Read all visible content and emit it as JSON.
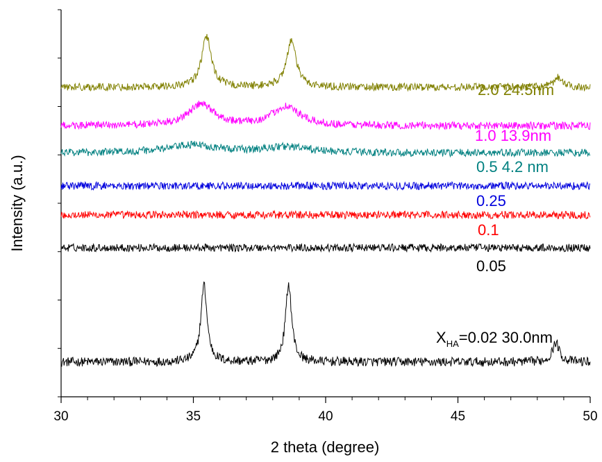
{
  "chart_data": {
    "type": "line",
    "xlabel": "2 theta (degree)",
    "ylabel": "Intensity (a.u.)",
    "xlim": [
      30,
      50
    ],
    "xticks": [
      "30",
      "35",
      "40",
      "45",
      "50"
    ],
    "y_tick_labels_shown": false,
    "series": [
      {
        "label_main": "X",
        "label_sub": "HA",
        "label_rest": "=0.02  30.0nm",
        "color": "#000000",
        "baseline": 0.09,
        "noise": 0.012,
        "peaks": [
          [
            35.4,
            0.2,
            0.14
          ],
          [
            38.6,
            0.2,
            0.14
          ],
          [
            48.7,
            0.05,
            0.16
          ]
        ]
      },
      {
        "label_main": "0.05",
        "color": "#000000",
        "baseline": 0.385,
        "noise": 0.01,
        "peaks": []
      },
      {
        "label_main": "0.1",
        "color": "#ff0000",
        "baseline": 0.47,
        "noise": 0.01,
        "peaks": []
      },
      {
        "label_main": "0.25",
        "color": "#0000dd",
        "baseline": 0.545,
        "noise": 0.01,
        "peaks": []
      },
      {
        "label_main": "0.5   4.2 nm",
        "color": "#008080",
        "baseline": 0.63,
        "noise": 0.01,
        "peaks": [
          [
            35.0,
            0.02,
            1.2
          ],
          [
            38.5,
            0.015,
            1.0
          ]
        ]
      },
      {
        "label_main": "1.0   13.9nm",
        "color": "#ff00ff",
        "baseline": 0.7,
        "noise": 0.01,
        "peaks": [
          [
            35.3,
            0.055,
            0.6
          ],
          [
            38.5,
            0.05,
            0.6
          ]
        ]
      },
      {
        "label_main": "2.0  24.5nm",
        "color": "#808000",
        "baseline": 0.8,
        "noise": 0.01,
        "peaks": [
          [
            35.5,
            0.13,
            0.22
          ],
          [
            38.7,
            0.12,
            0.22
          ],
          [
            48.8,
            0.025,
            0.18
          ]
        ]
      }
    ]
  }
}
